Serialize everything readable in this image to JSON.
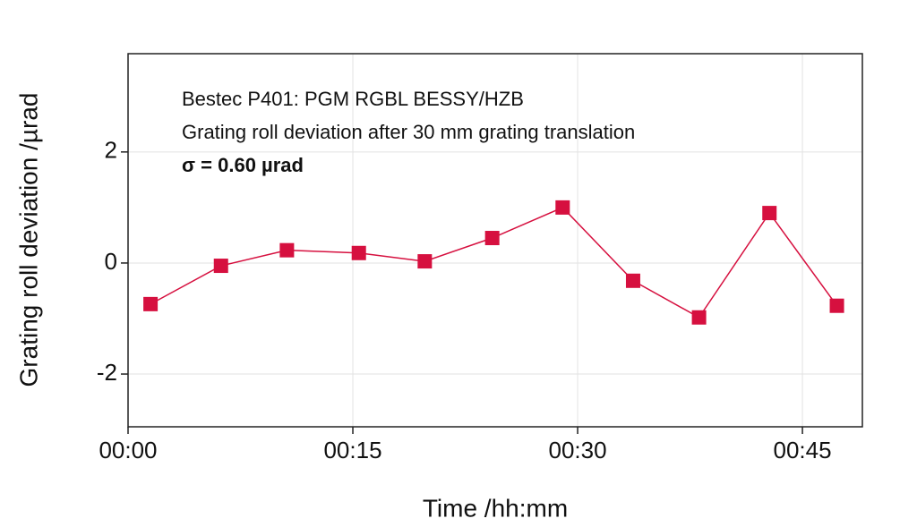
{
  "chart_data": {
    "type": "line",
    "annotations": [
      "Bestec P401: PGM RGBL BESSY/HZB",
      "Grating roll deviation after 30 mm grating translation",
      "σ = 0.60 µrad"
    ],
    "xlabel": "Time /hh:mm",
    "ylabel": "Grating roll deviation /µrad",
    "x": [
      1.5,
      6.2,
      10.6,
      15.4,
      19.8,
      24.3,
      29.0,
      33.7,
      38.1,
      42.8,
      47.3
    ],
    "series": [
      {
        "color": "#d6103f",
        "values": [
          -0.74,
          -0.05,
          0.23,
          0.18,
          0.03,
          0.45,
          1.0,
          -0.32,
          -0.98,
          0.9,
          -0.77
        ]
      }
    ],
    "xlim": [
      0,
      49
    ],
    "ylim": [
      -2.95,
      3.77
    ],
    "xticks": [
      {
        "value": 0,
        "label": "00:00"
      },
      {
        "value": 15,
        "label": "00:15"
      },
      {
        "value": 30,
        "label": "00:30"
      },
      {
        "value": 45,
        "label": "00:45"
      }
    ],
    "yticks": [
      -2,
      0,
      2
    ],
    "grid": true
  }
}
